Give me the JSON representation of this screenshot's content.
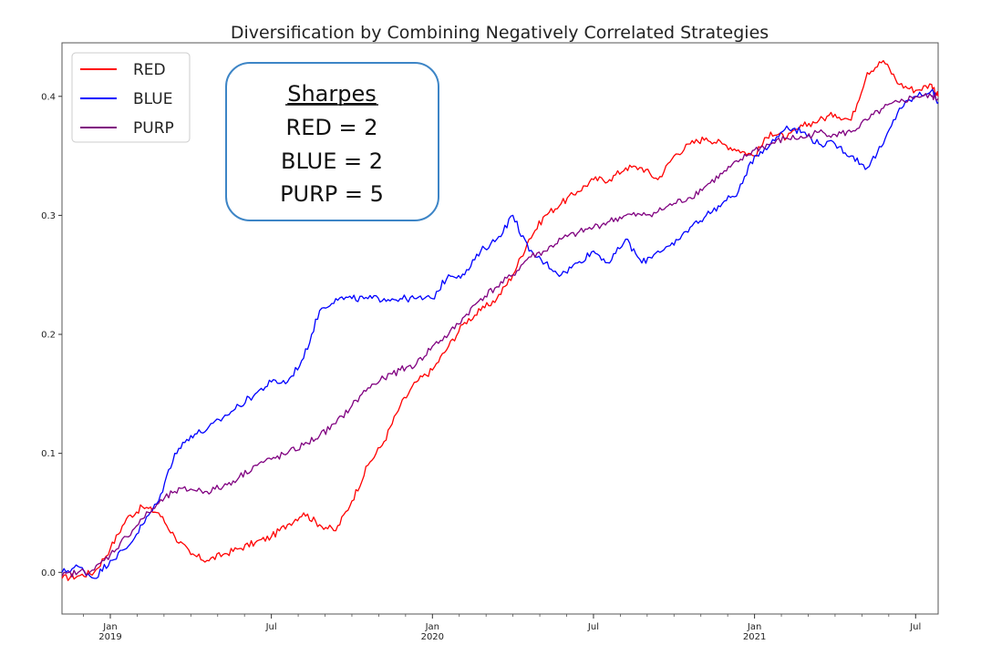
{
  "chart_data": {
    "type": "line",
    "title": "Diversification by Combining Negatively Correlated Strategies",
    "xlabel": "",
    "ylabel": "",
    "ylim": [
      -0.035,
      0.445
    ],
    "xlim": [
      -0.15,
      2.57
    ],
    "yticks": [
      0.0,
      0.1,
      0.2,
      0.3,
      0.4
    ],
    "ytick_labels": [
      "0.0",
      "0.1",
      "0.2",
      "0.3",
      "0.4"
    ],
    "xticks": [
      {
        "x": 0.0,
        "label": "Jan",
        "sublabel": "2019"
      },
      {
        "x": 0.5,
        "label": "Jul",
        "sublabel": ""
      },
      {
        "x": 1.0,
        "label": "Jan",
        "sublabel": "2020"
      },
      {
        "x": 1.5,
        "label": "Jul",
        "sublabel": ""
      },
      {
        "x": 2.0,
        "label": "Jan",
        "sublabel": "2021"
      },
      {
        "x": 2.5,
        "label": "Jul",
        "sublabel": ""
      }
    ],
    "x_unit": "years since Jan 2019",
    "legend_position": "top-left",
    "series": [
      {
        "name": "RED",
        "color": "#ff0000",
        "x": [
          -0.15,
          -0.1,
          -0.05,
          0.0,
          0.05,
          0.1,
          0.15,
          0.2,
          0.25,
          0.3,
          0.35,
          0.4,
          0.45,
          0.5,
          0.55,
          0.6,
          0.65,
          0.7,
          0.75,
          0.8,
          0.85,
          0.9,
          0.95,
          1.0,
          1.05,
          1.1,
          1.15,
          1.2,
          1.25,
          1.3,
          1.35,
          1.4,
          1.45,
          1.5,
          1.55,
          1.6,
          1.65,
          1.7,
          1.75,
          1.8,
          1.85,
          1.9,
          1.95,
          2.0,
          2.05,
          2.1,
          2.15,
          2.2,
          2.25,
          2.3,
          2.35,
          2.4,
          2.45,
          2.5,
          2.55,
          2.57
        ],
        "values": [
          -0.005,
          -0.003,
          0.0,
          0.02,
          0.045,
          0.055,
          0.05,
          0.03,
          0.015,
          0.01,
          0.015,
          0.02,
          0.025,
          0.03,
          0.04,
          0.05,
          0.04,
          0.035,
          0.06,
          0.09,
          0.11,
          0.14,
          0.16,
          0.17,
          0.19,
          0.21,
          0.22,
          0.23,
          0.25,
          0.28,
          0.3,
          0.31,
          0.32,
          0.33,
          0.33,
          0.34,
          0.34,
          0.33,
          0.35,
          0.36,
          0.365,
          0.36,
          0.355,
          0.35,
          0.37,
          0.365,
          0.375,
          0.38,
          0.385,
          0.38,
          0.42,
          0.43,
          0.41,
          0.405,
          0.41,
          0.4
        ]
      },
      {
        "name": "BLUE",
        "color": "#0000ff",
        "x": [
          -0.15,
          -0.1,
          -0.05,
          0.0,
          0.05,
          0.1,
          0.15,
          0.2,
          0.25,
          0.3,
          0.35,
          0.4,
          0.45,
          0.5,
          0.55,
          0.6,
          0.65,
          0.7,
          0.75,
          0.8,
          0.85,
          0.9,
          0.95,
          1.0,
          1.05,
          1.1,
          1.15,
          1.2,
          1.25,
          1.3,
          1.35,
          1.4,
          1.45,
          1.5,
          1.55,
          1.6,
          1.65,
          1.7,
          1.75,
          1.8,
          1.85,
          1.9,
          1.95,
          2.0,
          2.05,
          2.1,
          2.15,
          2.2,
          2.25,
          2.3,
          2.35,
          2.4,
          2.45,
          2.5,
          2.55,
          2.57
        ],
        "values": [
          0.0,
          0.005,
          -0.005,
          0.01,
          0.02,
          0.04,
          0.06,
          0.1,
          0.115,
          0.12,
          0.13,
          0.14,
          0.15,
          0.16,
          0.16,
          0.18,
          0.22,
          0.23,
          0.23,
          0.23,
          0.23,
          0.23,
          0.23,
          0.23,
          0.25,
          0.25,
          0.27,
          0.28,
          0.3,
          0.27,
          0.26,
          0.25,
          0.26,
          0.27,
          0.26,
          0.28,
          0.26,
          0.27,
          0.275,
          0.29,
          0.3,
          0.31,
          0.32,
          0.35,
          0.36,
          0.375,
          0.37,
          0.36,
          0.36,
          0.35,
          0.34,
          0.36,
          0.39,
          0.4,
          0.405,
          0.395
        ]
      },
      {
        "name": "PURP",
        "color": "#800080",
        "x": [
          -0.15,
          -0.1,
          -0.05,
          0.0,
          0.05,
          0.1,
          0.15,
          0.2,
          0.25,
          0.3,
          0.35,
          0.4,
          0.45,
          0.5,
          0.55,
          0.6,
          0.65,
          0.7,
          0.75,
          0.8,
          0.85,
          0.9,
          0.95,
          1.0,
          1.05,
          1.1,
          1.15,
          1.2,
          1.25,
          1.3,
          1.35,
          1.4,
          1.45,
          1.5,
          1.55,
          1.6,
          1.65,
          1.7,
          1.75,
          1.8,
          1.85,
          1.9,
          1.95,
          2.0,
          2.05,
          2.1,
          2.15,
          2.2,
          2.25,
          2.3,
          2.35,
          2.4,
          2.45,
          2.5,
          2.55,
          2.57
        ],
        "values": [
          -0.003,
          0.0,
          0.002,
          0.015,
          0.03,
          0.045,
          0.058,
          0.068,
          0.07,
          0.068,
          0.072,
          0.08,
          0.09,
          0.095,
          0.1,
          0.107,
          0.115,
          0.125,
          0.14,
          0.155,
          0.163,
          0.17,
          0.175,
          0.19,
          0.2,
          0.215,
          0.23,
          0.24,
          0.25,
          0.265,
          0.27,
          0.28,
          0.285,
          0.29,
          0.295,
          0.3,
          0.3,
          0.303,
          0.31,
          0.315,
          0.325,
          0.335,
          0.345,
          0.355,
          0.36,
          0.365,
          0.365,
          0.37,
          0.368,
          0.37,
          0.38,
          0.39,
          0.395,
          0.4,
          0.4,
          0.398
        ]
      }
    ],
    "annotation": {
      "heading": "Sharpes",
      "lines": [
        "RED = 2",
        "BLUE = 2",
        "PURP = 5"
      ]
    }
  }
}
